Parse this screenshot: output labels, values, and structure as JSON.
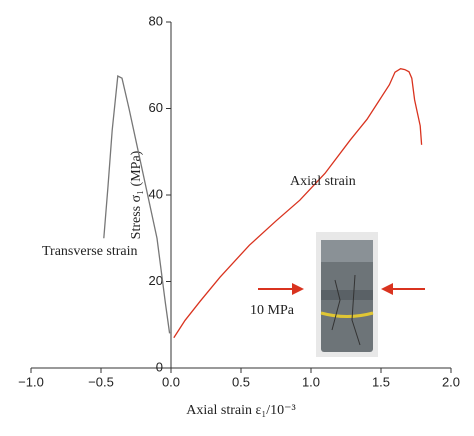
{
  "chart_data": {
    "type": "line",
    "x_label": "Axial strain ε₁/10⁻³",
    "y_label": "Stress σ₁ (MPa)",
    "series": [
      {
        "name": "Axial strain",
        "color": "#d9331f",
        "x": [
          0.02,
          0.1,
          0.21,
          0.35,
          0.56,
          0.75,
          0.92,
          1.1,
          1.28,
          1.4,
          1.49,
          1.56,
          1.6,
          1.64,
          1.67,
          1.7,
          1.72,
          1.74,
          1.76,
          1.78,
          1.79
        ],
        "values": [
          7,
          11,
          15.5,
          21,
          28.4,
          34,
          38.8,
          45,
          52.7,
          57.5,
          62,
          65.5,
          68.4,
          69.2,
          69,
          68.5,
          67,
          62,
          59,
          56,
          51.6
        ]
      },
      {
        "name": "Transverse strain",
        "color": "#777777",
        "x": [
          -0.48,
          -0.45,
          -0.42,
          -0.38,
          -0.35,
          -0.3,
          -0.2,
          -0.1,
          -0.04,
          -0.01
        ],
        "values": [
          30,
          42,
          55,
          67.5,
          67,
          60,
          45,
          30,
          15,
          8
        ]
      }
    ],
    "annotation": "10 MPa",
    "xlim": [
      -1,
      2
    ],
    "ylim": [
      0,
      80
    ],
    "xticks": [
      {
        "value": -1,
        "label": "−1.0"
      },
      {
        "value": -0.5,
        "label": "−0.5"
      },
      {
        "value": 0,
        "label": "0.0"
      },
      {
        "value": 0.5,
        "label": "0.5"
      },
      {
        "value": 1,
        "label": "1.0"
      },
      {
        "value": 1.5,
        "label": "1.5"
      },
      {
        "value": 2,
        "label": "2.0"
      }
    ],
    "yticks": [
      0,
      20,
      40,
      60,
      80
    ]
  }
}
